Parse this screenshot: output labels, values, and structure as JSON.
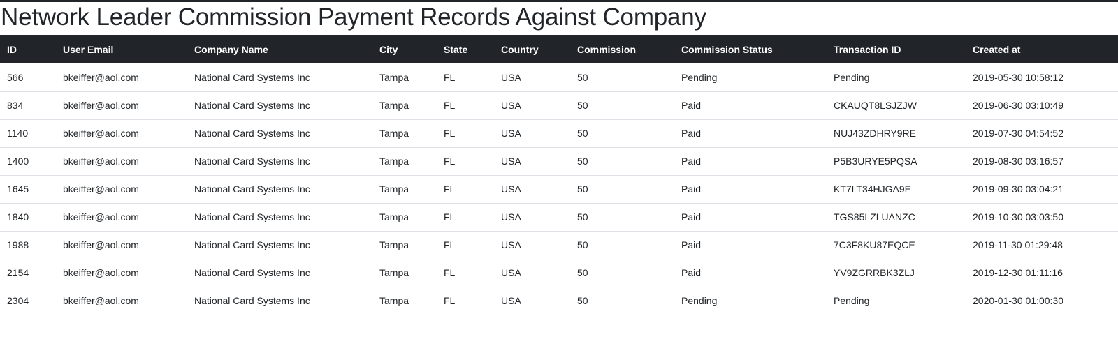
{
  "page": {
    "title": "Network Leader Commission Payment Records Against Company"
  },
  "table": {
    "columns": [
      "ID",
      "User Email",
      "Company Name",
      "City",
      "State",
      "Country",
      "Commission",
      "Commission Status",
      "Transaction ID",
      "Created at"
    ],
    "rows": [
      [
        "566",
        "bkeiffer@aol.com",
        "National Card Systems Inc",
        "Tampa",
        "FL",
        "USA",
        "50",
        "Pending",
        "Pending",
        "2019-05-30 10:58:12"
      ],
      [
        "834",
        "bkeiffer@aol.com",
        "National Card Systems Inc",
        "Tampa",
        "FL",
        "USA",
        "50",
        "Paid",
        "CKAUQT8LSJZJW",
        "2019-06-30 03:10:49"
      ],
      [
        "1140",
        "bkeiffer@aol.com",
        "National Card Systems Inc",
        "Tampa",
        "FL",
        "USA",
        "50",
        "Paid",
        "NUJ43ZDHRY9RE",
        "2019-07-30 04:54:52"
      ],
      [
        "1400",
        "bkeiffer@aol.com",
        "National Card Systems Inc",
        "Tampa",
        "FL",
        "USA",
        "50",
        "Paid",
        "P5B3URYE5PQSA",
        "2019-08-30 03:16:57"
      ],
      [
        "1645",
        "bkeiffer@aol.com",
        "National Card Systems Inc",
        "Tampa",
        "FL",
        "USA",
        "50",
        "Paid",
        "KT7LT34HJGA9E",
        "2019-09-30 03:04:21"
      ],
      [
        "1840",
        "bkeiffer@aol.com",
        "National Card Systems Inc",
        "Tampa",
        "FL",
        "USA",
        "50",
        "Paid",
        "TGS85LZLUANZC",
        "2019-10-30 03:03:50"
      ],
      [
        "1988",
        "bkeiffer@aol.com",
        "National Card Systems Inc",
        "Tampa",
        "FL",
        "USA",
        "50",
        "Paid",
        "7C3F8KU87EQCE",
        "2019-11-30 01:29:48"
      ],
      [
        "2154",
        "bkeiffer@aol.com",
        "National Card Systems Inc",
        "Tampa",
        "FL",
        "USA",
        "50",
        "Paid",
        "YV9ZGRRBK3ZLJ",
        "2019-12-30 01:11:16"
      ],
      [
        "2304",
        "bkeiffer@aol.com",
        "National Card Systems Inc",
        "Tampa",
        "FL",
        "USA",
        "50",
        "Pending",
        "Pending",
        "2020-01-30 01:00:30"
      ]
    ]
  },
  "colors": {
    "header_bg": "#212529",
    "header_text": "#ffffff",
    "row_border": "#dee2e6",
    "text": "#212529"
  }
}
